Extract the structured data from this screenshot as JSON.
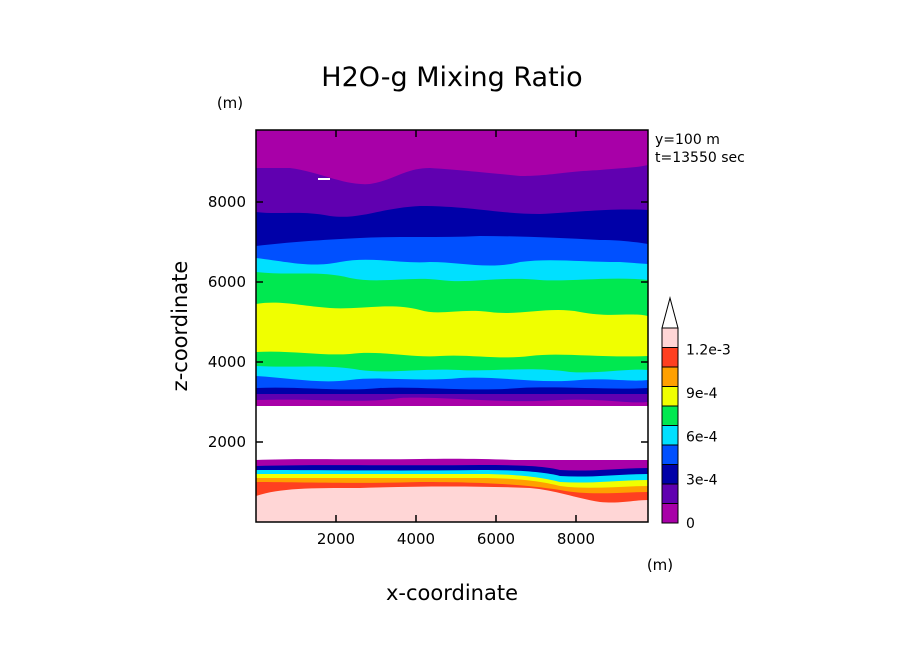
{
  "chart_data": {
    "type": "heatmap",
    "title": "H2O-g Mixing Ratio",
    "xlabel": "x-coordinate",
    "ylabel": "z-coordinate",
    "x_unit": "(m)",
    "y_unit": "(m)",
    "xlim": [
      0,
      9800
    ],
    "ylim": [
      0,
      9800
    ],
    "x_ticks": [
      2000,
      4000,
      6000,
      8000
    ],
    "y_ticks": [
      2000,
      4000,
      6000,
      8000
    ],
    "annotations": [
      "y=100 m",
      "t=13550 sec"
    ],
    "colorbar": {
      "levels": [
        0,
        0.00015,
        0.0003,
        0.00045,
        0.0006,
        0.00075,
        0.0009,
        0.00105,
        0.0012,
        0.00135
      ],
      "tick_values": [
        0,
        0.0003,
        0.0006,
        0.0009,
        0.0012
      ],
      "tick_labels": [
        "0",
        "3e-4",
        "6e-4",
        "9e-4",
        "1.2e-3"
      ],
      "colors": [
        "#a800a8",
        "#6000b0",
        "#0000a8",
        "#0050ff",
        "#00e0ff",
        "#00e850",
        "#f0ff00",
        "#ffa000",
        "#ff4020",
        "#ffd6d6"
      ],
      "extend": "max"
    },
    "layers": [
      {
        "z_top": 9800,
        "z_bottom": 8850,
        "level": "0-1.5e-4",
        "color": "#a800a8"
      },
      {
        "z_top": 8850,
        "z_bottom": 7800,
        "level": "1.5e-4-3e-4",
        "color": "#6000b0"
      },
      {
        "z_top": 7800,
        "z_bottom": 7000,
        "level": "3e-4-4.5e-4",
        "color": "#0000a8"
      },
      {
        "z_top": 7000,
        "z_bottom": 6600,
        "level": "4.5e-4-6e-4",
        "color": "#0050ff"
      },
      {
        "z_top": 6600,
        "z_bottom": 6200,
        "level": "6e-4-7.5e-4",
        "color": "#00e0ff"
      },
      {
        "z_top": 6200,
        "z_bottom": 5400,
        "level": "7.5e-4-9e-4",
        "color": "#00e850"
      },
      {
        "z_top": 5400,
        "z_bottom": 4100,
        "level": "9e-4-1.05e-3",
        "color": "#f0ff00"
      },
      {
        "z_top": 4100,
        "z_bottom": 3500,
        "level": "mixed 3e-4-9e-4",
        "color": "#00e850"
      },
      {
        "z_top": 3500,
        "z_bottom": 3000,
        "level": "0-3e-4",
        "color": "#6000b0"
      },
      {
        "z_top": 3000,
        "z_bottom": 1650,
        "level": "no data",
        "color": "#ffffff"
      },
      {
        "z_top": 1650,
        "z_bottom": 1300,
        "level": "0-9e-4",
        "color": "#a800a8"
      },
      {
        "z_top": 1300,
        "z_bottom": 1000,
        "level": "9e-4-1.2e-3",
        "color": "#ff4020"
      },
      {
        "z_top": 1000,
        "z_bottom": 0,
        "level": ">1.2e-3",
        "color": "#ffd6d6"
      }
    ]
  }
}
